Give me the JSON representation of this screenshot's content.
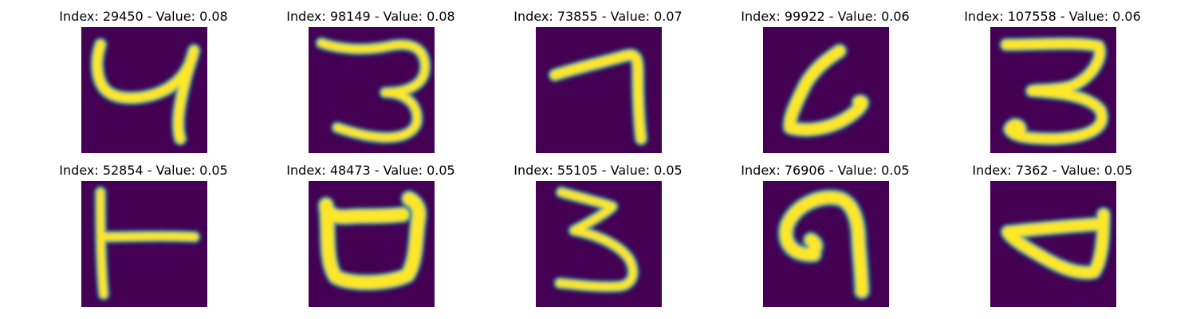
{
  "grid": {
    "rows": 2,
    "cols": 5
  },
  "panels": [
    {
      "title": "Index: 29450 - Value: 0.08"
    },
    {
      "title": "Index: 98149 - Value: 0.08"
    },
    {
      "title": "Index: 73855 - Value: 0.07"
    },
    {
      "title": "Index: 99922 - Value: 0.06"
    },
    {
      "title": "Index: 107558 - Value: 0.06"
    },
    {
      "title": "Index: 52854 - Value: 0.05"
    },
    {
      "title": "Index: 48473 - Value: 0.05"
    },
    {
      "title": "Index: 55105 - Value: 0.05"
    },
    {
      "title": "Index: 76906 - Value: 0.05"
    },
    {
      "title": "Index: 7362 - Value: 0.05"
    }
  ],
  "colors": {
    "background": "#440154",
    "stroke_core": "#fde725",
    "stroke_edge": "#21918c"
  }
}
